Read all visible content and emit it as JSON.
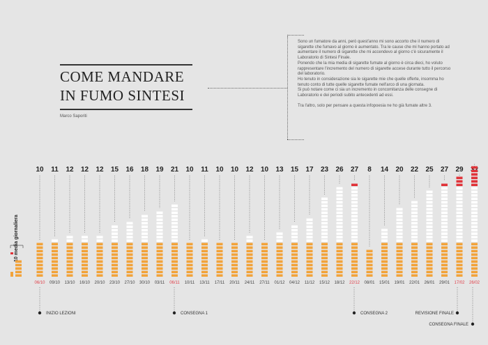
{
  "header": {
    "title_line1": "COME MANDARE",
    "title_line2": "IN FUMO SINTESI",
    "author": "Marco Saporiti"
  },
  "intro": {
    "paragraph1": "Sono un fumatore da anni, però quest'anno mi sono accorto che il numero di sigarette che fumavo al giorno è aumentato. Tra le cause che mi hanno portato ad aumentare il numero di sigarette che mi accendevo al giorno c'è sicuramente il Laboratorio di Sintesi Finale.",
    "paragraph2": "Ponendo che la mia media di sigarette fumate al giorno è circa dieci, ho voluto rappresentare l'incremento del numero di sigarette accese durante tutto il percorso del laboratorio.",
    "paragraph3": "Ho tenuto in considerazione sia le sigarette mie che quelle offerte, insomma ho tenuto conto di tutte quelle sigarette fumate nell'arco di una giornata.",
    "paragraph4": "Si può notare come ci sia un incremento in concomitanza delle consegne di Laboratorio e dei periodi subito antecedenti ad essi.",
    "paragraph5": "Tra l'altro, solo per pensare a questa infopoesia ne ho già fumate altre 3."
  },
  "chart_data": {
    "type": "bar",
    "ylabel": "10 media giornaliera",
    "baseline_average": 10,
    "categories": [
      "06/10",
      "09/10",
      "13/10",
      "16/10",
      "20/10",
      "23/10",
      "27/10",
      "30/10",
      "03/11",
      "06/11",
      "10/11",
      "13/11",
      "17/11",
      "20/11",
      "24/11",
      "27/11",
      "01/12",
      "04/12",
      "11/12",
      "15/12",
      "18/12",
      "22/12",
      "08/01",
      "15/01",
      "19/01",
      "22/01",
      "26/01",
      "29/01",
      "17/02",
      "26/02"
    ],
    "values": [
      10,
      11,
      12,
      12,
      12,
      15,
      16,
      18,
      19,
      21,
      10,
      11,
      10,
      10,
      12,
      10,
      13,
      15,
      17,
      23,
      26,
      27,
      8,
      14,
      20,
      22,
      25,
      27,
      29,
      32
    ],
    "highlighted_dates": [
      "06/10",
      "06/11",
      "22/12",
      "17/02",
      "26/02"
    ],
    "milestones": [
      {
        "label": "INIZIO LEZIONI",
        "date": "06/10"
      },
      {
        "label": "CONSEGNA 1",
        "date": "06/11"
      },
      {
        "label": "CONSEGNA 2",
        "date": "22/12"
      },
      {
        "label": "REVISIONE FINALE",
        "date": "17/02"
      },
      {
        "label": "CONSEGNA FINALE",
        "date": "26/02"
      }
    ],
    "colors": {
      "average": "#f2a33a",
      "extra": "#ffffff",
      "excess": "#e0343a",
      "highlight_text": "#e0404a",
      "text": "#222222"
    }
  }
}
